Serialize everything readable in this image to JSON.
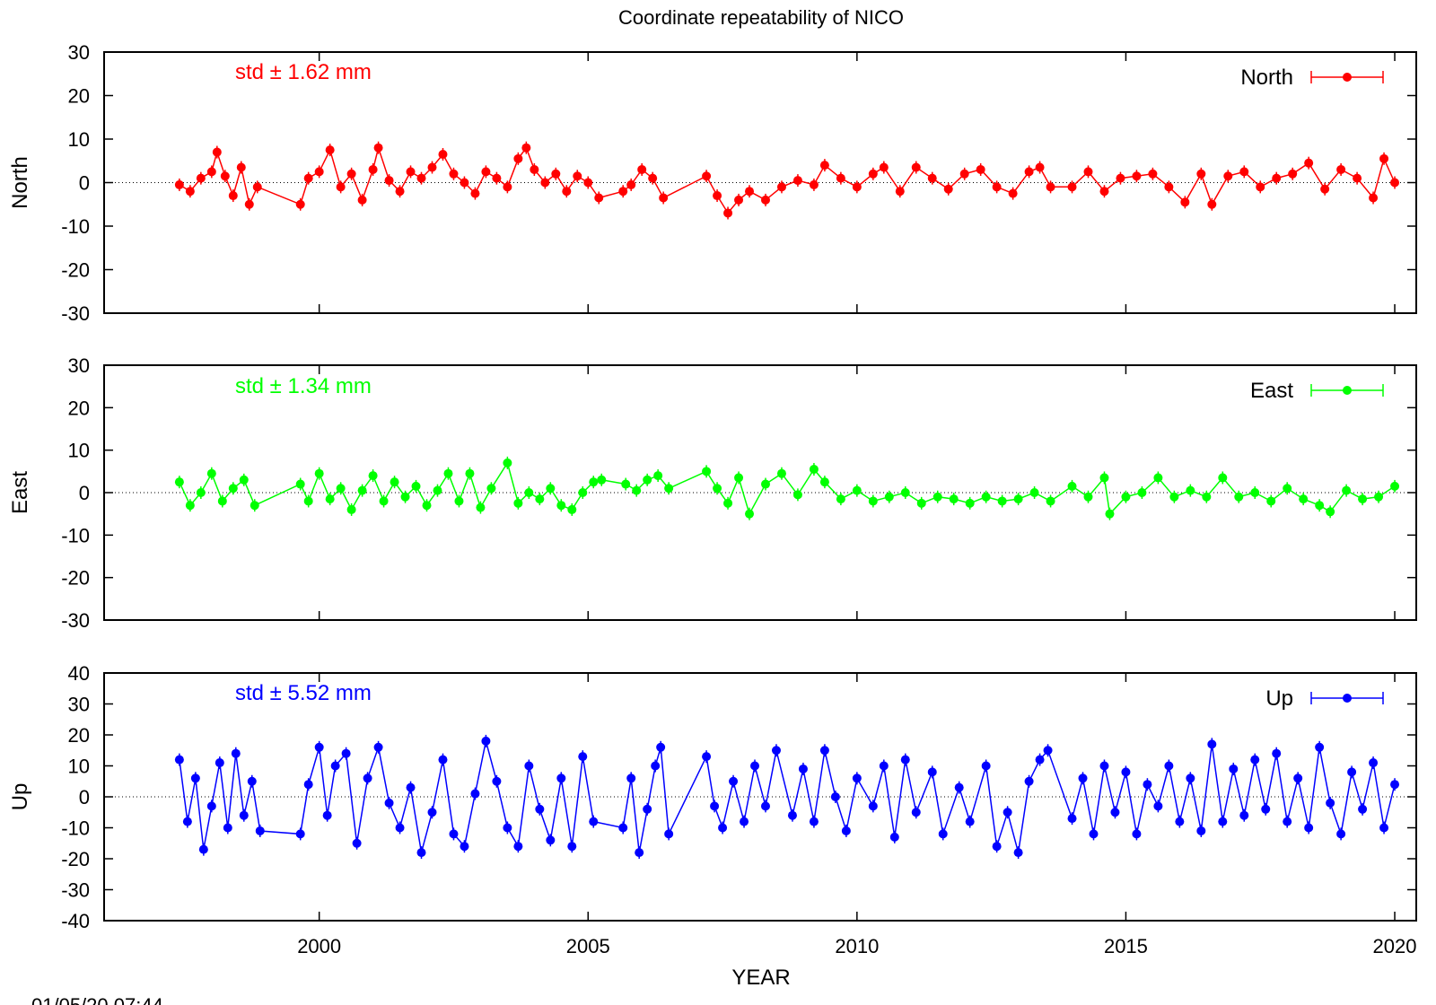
{
  "title": "Coordinate repeatability of NICO",
  "timestamp": "01/05/20 07:44",
  "xlabel": "YEAR",
  "chart_data": {
    "type": "scatter",
    "title": "Coordinate repeatability of NICO",
    "xlabel": "YEAR",
    "xlim": [
      1996,
      2020.4
    ],
    "x_ticks": [
      2000,
      2005,
      2010,
      2015,
      2020
    ],
    "x_tick_labels": [
      "2000",
      "2005",
      "2010",
      "2015",
      "2020"
    ],
    "panels": [
      {
        "ylabel": "North",
        "series_name": "North",
        "color": "#ff0000",
        "std_label": "std ± 1.62 mm",
        "ylim": [
          -30,
          30
        ],
        "y_ticks": [
          30,
          20,
          10,
          0,
          -10,
          -20,
          -30
        ],
        "y_tick_labels": [
          "30",
          "20",
          "10",
          "0",
          "-10",
          "-20",
          "-30"
        ],
        "points": [
          [
            1997.4,
            -0.5
          ],
          [
            1997.6,
            -2.0
          ],
          [
            1997.8,
            1.0
          ],
          [
            1998.0,
            2.5
          ],
          [
            1998.1,
            7.0
          ],
          [
            1998.25,
            1.5
          ],
          [
            1998.4,
            -3.0
          ],
          [
            1998.55,
            3.5
          ],
          [
            1998.7,
            -5.0
          ],
          [
            1998.85,
            -1.0
          ],
          [
            1999.65,
            -5.0
          ],
          [
            1999.8,
            1.0
          ],
          [
            2000.0,
            2.5
          ],
          [
            2000.2,
            7.5
          ],
          [
            2000.4,
            -1.0
          ],
          [
            2000.6,
            2.0
          ],
          [
            2000.8,
            -4.0
          ],
          [
            2001.0,
            3.0
          ],
          [
            2001.1,
            8.0
          ],
          [
            2001.3,
            0.5
          ],
          [
            2001.5,
            -2.0
          ],
          [
            2001.7,
            2.5
          ],
          [
            2001.9,
            1.0
          ],
          [
            2002.1,
            3.5
          ],
          [
            2002.3,
            6.5
          ],
          [
            2002.5,
            2.0
          ],
          [
            2002.7,
            0.0
          ],
          [
            2002.9,
            -2.5
          ],
          [
            2003.1,
            2.5
          ],
          [
            2003.3,
            1.0
          ],
          [
            2003.5,
            -1.0
          ],
          [
            2003.7,
            5.5
          ],
          [
            2003.85,
            8.0
          ],
          [
            2004.0,
            3.0
          ],
          [
            2004.2,
            0.0
          ],
          [
            2004.4,
            2.0
          ],
          [
            2004.6,
            -2.0
          ],
          [
            2004.8,
            1.5
          ],
          [
            2005.0,
            0.0
          ],
          [
            2005.2,
            -3.5
          ],
          [
            2005.65,
            -2.0
          ],
          [
            2005.8,
            -0.5
          ],
          [
            2006.0,
            3.0
          ],
          [
            2006.2,
            1.0
          ],
          [
            2006.4,
            -3.5
          ],
          [
            2007.2,
            1.5
          ],
          [
            2007.4,
            -3.0
          ],
          [
            2007.6,
            -7.0
          ],
          [
            2007.8,
            -4.0
          ],
          [
            2008.0,
            -2.0
          ],
          [
            2008.3,
            -4.0
          ],
          [
            2008.6,
            -1.0
          ],
          [
            2008.9,
            0.5
          ],
          [
            2009.2,
            -0.5
          ],
          [
            2009.4,
            4.0
          ],
          [
            2009.7,
            1.0
          ],
          [
            2010.0,
            -1.0
          ],
          [
            2010.3,
            2.0
          ],
          [
            2010.5,
            3.5
          ],
          [
            2010.8,
            -2.0
          ],
          [
            2011.1,
            3.5
          ],
          [
            2011.4,
            1.0
          ],
          [
            2011.7,
            -1.5
          ],
          [
            2012.0,
            2.0
          ],
          [
            2012.3,
            3.0
          ],
          [
            2012.6,
            -1.0
          ],
          [
            2012.9,
            -2.5
          ],
          [
            2013.2,
            2.5
          ],
          [
            2013.4,
            3.5
          ],
          [
            2013.6,
            -1.0
          ],
          [
            2014.0,
            -1.0
          ],
          [
            2014.3,
            2.5
          ],
          [
            2014.6,
            -2.0
          ],
          [
            2014.9,
            1.0
          ],
          [
            2015.2,
            1.5
          ],
          [
            2015.5,
            2.0
          ],
          [
            2015.8,
            -1.0
          ],
          [
            2016.1,
            -4.5
          ],
          [
            2016.4,
            2.0
          ],
          [
            2016.6,
            -5.0
          ],
          [
            2016.9,
            1.5
          ],
          [
            2017.2,
            2.5
          ],
          [
            2017.5,
            -1.0
          ],
          [
            2017.8,
            1.0
          ],
          [
            2018.1,
            2.0
          ],
          [
            2018.4,
            4.5
          ],
          [
            2018.7,
            -1.5
          ],
          [
            2019.0,
            3.0
          ],
          [
            2019.3,
            1.0
          ],
          [
            2019.6,
            -3.5
          ],
          [
            2019.8,
            5.5
          ],
          [
            2020.0,
            0.0
          ]
        ]
      },
      {
        "ylabel": "East",
        "series_name": "East",
        "color": "#00ff00",
        "std_label": "std ± 1.34 mm",
        "ylim": [
          -30,
          30
        ],
        "y_ticks": [
          30,
          20,
          10,
          0,
          -10,
          -20,
          -30
        ],
        "y_tick_labels": [
          "30",
          "20",
          "10",
          "0",
          "-10",
          "-20",
          "-30"
        ],
        "points": [
          [
            1997.4,
            2.5
          ],
          [
            1997.6,
            -3.0
          ],
          [
            1997.8,
            0.0
          ],
          [
            1998.0,
            4.5
          ],
          [
            1998.2,
            -2.0
          ],
          [
            1998.4,
            1.0
          ],
          [
            1998.6,
            3.0
          ],
          [
            1998.8,
            -3.0
          ],
          [
            1999.65,
            2.0
          ],
          [
            1999.8,
            -2.0
          ],
          [
            2000.0,
            4.5
          ],
          [
            2000.2,
            -1.5
          ],
          [
            2000.4,
            1.0
          ],
          [
            2000.6,
            -4.0
          ],
          [
            2000.8,
            0.5
          ],
          [
            2001.0,
            4.0
          ],
          [
            2001.2,
            -2.0
          ],
          [
            2001.4,
            2.5
          ],
          [
            2001.6,
            -1.0
          ],
          [
            2001.8,
            1.5
          ],
          [
            2002.0,
            -3.0
          ],
          [
            2002.2,
            0.5
          ],
          [
            2002.4,
            4.5
          ],
          [
            2002.6,
            -2.0
          ],
          [
            2002.8,
            4.5
          ],
          [
            2003.0,
            -3.5
          ],
          [
            2003.2,
            1.0
          ],
          [
            2003.5,
            7.0
          ],
          [
            2003.7,
            -2.5
          ],
          [
            2003.9,
            0.0
          ],
          [
            2004.1,
            -1.5
          ],
          [
            2004.3,
            1.0
          ],
          [
            2004.5,
            -3.0
          ],
          [
            2004.7,
            -4.0
          ],
          [
            2004.9,
            0.0
          ],
          [
            2005.1,
            2.5
          ],
          [
            2005.25,
            3.0
          ],
          [
            2005.7,
            2.0
          ],
          [
            2005.9,
            0.5
          ],
          [
            2006.1,
            3.0
          ],
          [
            2006.3,
            4.0
          ],
          [
            2006.5,
            1.0
          ],
          [
            2007.2,
            5.0
          ],
          [
            2007.4,
            1.0
          ],
          [
            2007.6,
            -2.5
          ],
          [
            2007.8,
            3.5
          ],
          [
            2008.0,
            -5.0
          ],
          [
            2008.3,
            2.0
          ],
          [
            2008.6,
            4.5
          ],
          [
            2008.9,
            -0.5
          ],
          [
            2009.2,
            5.5
          ],
          [
            2009.4,
            2.5
          ],
          [
            2009.7,
            -1.5
          ],
          [
            2010.0,
            0.5
          ],
          [
            2010.3,
            -2.0
          ],
          [
            2010.6,
            -1.0
          ],
          [
            2010.9,
            0.0
          ],
          [
            2011.2,
            -2.5
          ],
          [
            2011.5,
            -1.0
          ],
          [
            2011.8,
            -1.5
          ],
          [
            2012.1,
            -2.5
          ],
          [
            2012.4,
            -1.0
          ],
          [
            2012.7,
            -2.0
          ],
          [
            2013.0,
            -1.5
          ],
          [
            2013.3,
            0.0
          ],
          [
            2013.6,
            -2.0
          ],
          [
            2014.0,
            1.5
          ],
          [
            2014.3,
            -1.0
          ],
          [
            2014.6,
            3.5
          ],
          [
            2014.7,
            -5.0
          ],
          [
            2015.0,
            -1.0
          ],
          [
            2015.3,
            0.0
          ],
          [
            2015.6,
            3.5
          ],
          [
            2015.9,
            -1.0
          ],
          [
            2016.2,
            0.5
          ],
          [
            2016.5,
            -1.0
          ],
          [
            2016.8,
            3.5
          ],
          [
            2017.1,
            -1.0
          ],
          [
            2017.4,
            0.0
          ],
          [
            2017.7,
            -2.0
          ],
          [
            2018.0,
            1.0
          ],
          [
            2018.3,
            -1.5
          ],
          [
            2018.6,
            -3.0
          ],
          [
            2018.8,
            -4.5
          ],
          [
            2019.1,
            0.5
          ],
          [
            2019.4,
            -1.5
          ],
          [
            2019.7,
            -1.0
          ],
          [
            2020.0,
            1.5
          ]
        ]
      },
      {
        "ylabel": "Up",
        "series_name": "Up",
        "color": "#0000ff",
        "std_label": "std ± 5.52 mm",
        "ylim": [
          -40,
          40
        ],
        "y_ticks": [
          40,
          30,
          20,
          10,
          0,
          -10,
          -20,
          -30,
          -40
        ],
        "y_tick_labels": [
          "40",
          "30",
          "20",
          "10",
          "0",
          "-10",
          "-20",
          "-30",
          "-40"
        ],
        "points": [
          [
            1997.4,
            12.0
          ],
          [
            1997.55,
            -8.0
          ],
          [
            1997.7,
            6.0
          ],
          [
            1997.85,
            -17.0
          ],
          [
            1998.0,
            -3.0
          ],
          [
            1998.15,
            11.0
          ],
          [
            1998.3,
            -10.0
          ],
          [
            1998.45,
            14.0
          ],
          [
            1998.6,
            -6.0
          ],
          [
            1998.75,
            5.0
          ],
          [
            1998.9,
            -11.0
          ],
          [
            1999.65,
            -12.0
          ],
          [
            1999.8,
            4.0
          ],
          [
            2000.0,
            16.0
          ],
          [
            2000.15,
            -6.0
          ],
          [
            2000.3,
            10.0
          ],
          [
            2000.5,
            14.0
          ],
          [
            2000.7,
            -15.0
          ],
          [
            2000.9,
            6.0
          ],
          [
            2001.1,
            16.0
          ],
          [
            2001.3,
            -2.0
          ],
          [
            2001.5,
            -10.0
          ],
          [
            2001.7,
            3.0
          ],
          [
            2001.9,
            -18.0
          ],
          [
            2002.1,
            -5.0
          ],
          [
            2002.3,
            12.0
          ],
          [
            2002.5,
            -12.0
          ],
          [
            2002.7,
            -16.0
          ],
          [
            2002.9,
            1.0
          ],
          [
            2003.1,
            18.0
          ],
          [
            2003.3,
            5.0
          ],
          [
            2003.5,
            -10.0
          ],
          [
            2003.7,
            -16.0
          ],
          [
            2003.9,
            10.0
          ],
          [
            2004.1,
            -4.0
          ],
          [
            2004.3,
            -14.0
          ],
          [
            2004.5,
            6.0
          ],
          [
            2004.7,
            -16.0
          ],
          [
            2004.9,
            13.0
          ],
          [
            2005.1,
            -8.0
          ],
          [
            2005.65,
            -10.0
          ],
          [
            2005.8,
            6.0
          ],
          [
            2005.95,
            -18.0
          ],
          [
            2006.1,
            -4.0
          ],
          [
            2006.25,
            10.0
          ],
          [
            2006.35,
            16.0
          ],
          [
            2006.5,
            -12.0
          ],
          [
            2007.2,
            13.0
          ],
          [
            2007.35,
            -3.0
          ],
          [
            2007.5,
            -10.0
          ],
          [
            2007.7,
            5.0
          ],
          [
            2007.9,
            -8.0
          ],
          [
            2008.1,
            10.0
          ],
          [
            2008.3,
            -3.0
          ],
          [
            2008.5,
            15.0
          ],
          [
            2008.8,
            -6.0
          ],
          [
            2009.0,
            9.0
          ],
          [
            2009.2,
            -8.0
          ],
          [
            2009.4,
            15.0
          ],
          [
            2009.6,
            0.0
          ],
          [
            2009.8,
            -11.0
          ],
          [
            2010.0,
            6.0
          ],
          [
            2010.3,
            -3.0
          ],
          [
            2010.5,
            10.0
          ],
          [
            2010.7,
            -13.0
          ],
          [
            2010.9,
            12.0
          ],
          [
            2011.1,
            -5.0
          ],
          [
            2011.4,
            8.0
          ],
          [
            2011.6,
            -12.0
          ],
          [
            2011.9,
            3.0
          ],
          [
            2012.1,
            -8.0
          ],
          [
            2012.4,
            10.0
          ],
          [
            2012.6,
            -16.0
          ],
          [
            2012.8,
            -5.0
          ],
          [
            2013.0,
            -18.0
          ],
          [
            2013.2,
            5.0
          ],
          [
            2013.4,
            12.0
          ],
          [
            2013.55,
            15.0
          ],
          [
            2014.0,
            -7.0
          ],
          [
            2014.2,
            6.0
          ],
          [
            2014.4,
            -12.0
          ],
          [
            2014.6,
            10.0
          ],
          [
            2014.8,
            -5.0
          ],
          [
            2015.0,
            8.0
          ],
          [
            2015.2,
            -12.0
          ],
          [
            2015.4,
            4.0
          ],
          [
            2015.6,
            -3.0
          ],
          [
            2015.8,
            10.0
          ],
          [
            2016.0,
            -8.0
          ],
          [
            2016.2,
            6.0
          ],
          [
            2016.4,
            -11.0
          ],
          [
            2016.6,
            17.0
          ],
          [
            2016.8,
            -8.0
          ],
          [
            2017.0,
            9.0
          ],
          [
            2017.2,
            -6.0
          ],
          [
            2017.4,
            12.0
          ],
          [
            2017.6,
            -4.0
          ],
          [
            2017.8,
            14.0
          ],
          [
            2018.0,
            -8.0
          ],
          [
            2018.2,
            6.0
          ],
          [
            2018.4,
            -10.0
          ],
          [
            2018.6,
            16.0
          ],
          [
            2018.8,
            -2.0
          ],
          [
            2019.0,
            -12.0
          ],
          [
            2019.2,
            8.0
          ],
          [
            2019.4,
            -4.0
          ],
          [
            2019.6,
            11.0
          ],
          [
            2019.8,
            -10.0
          ],
          [
            2020.0,
            4.0
          ]
        ]
      }
    ]
  }
}
